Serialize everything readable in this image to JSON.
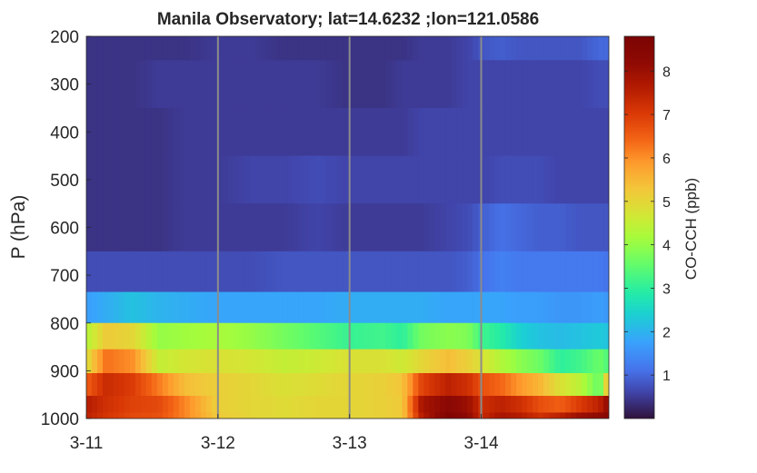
{
  "chart_data": {
    "type": "heatmap",
    "title": "Manila Observatory; lat=14.6232 ;lon=121.0586",
    "ylabel": "P (hPa)",
    "colorbar_label": "CO-CCH (ppb)",
    "colormap": "turbo",
    "y_ticks": [
      "200",
      "300",
      "400",
      "500",
      "600",
      "700",
      "800",
      "900",
      "1000"
    ],
    "y_range": [
      200,
      1000
    ],
    "y_reversed": true,
    "x_ticks": [
      "3-11",
      "3-12",
      "3-13",
      "3-14"
    ],
    "x_range": [
      "3-11 00:00",
      "3-14 23:00"
    ],
    "time_range_days": [
      0,
      3.97
    ],
    "colorbar_ticks": [
      "1",
      "2",
      "3",
      "4",
      "5",
      "6",
      "7",
      "8"
    ],
    "colorbar_range": [
      0,
      8.8
    ],
    "vertical_grid_lines_at": [
      "3-12",
      "3-13",
      "3-14"
    ],
    "grid": "vertical lines at day ticks",
    "pressure_levels_hPa": [
      200,
      300,
      400,
      500,
      600,
      700,
      770,
      830,
      880,
      930,
      975,
      1000
    ],
    "profile_samples_days": [
      0,
      0.15,
      0.35,
      0.55,
      0.75,
      1.0,
      1.25,
      1.5,
      1.75,
      2.0,
      2.25,
      2.4,
      2.55,
      2.75,
      2.9,
      3.0,
      3.15,
      3.3,
      3.45,
      3.6,
      3.75,
      3.9,
      3.97
    ],
    "values_ppb": [
      [
        0.4,
        0.4,
        0.4,
        0.4,
        0.4,
        0.5,
        0.5,
        0.4,
        0.4,
        0.4,
        0.4,
        0.4,
        0.5,
        0.5,
        0.6,
        0.8,
        0.9,
        0.8,
        0.8,
        0.8,
        0.8,
        1.0,
        1.0
      ],
      [
        0.4,
        0.4,
        0.4,
        0.5,
        0.5,
        0.5,
        0.5,
        0.5,
        0.5,
        0.4,
        0.4,
        0.5,
        0.5,
        0.5,
        0.6,
        0.6,
        0.6,
        0.6,
        0.6,
        0.6,
        0.6,
        0.7,
        0.7
      ],
      [
        0.4,
        0.4,
        0.4,
        0.4,
        0.5,
        0.5,
        0.5,
        0.5,
        0.5,
        0.5,
        0.5,
        0.5,
        0.6,
        0.6,
        0.6,
        0.6,
        0.6,
        0.6,
        0.6,
        0.6,
        0.6,
        0.6,
        0.6
      ],
      [
        0.4,
        0.4,
        0.4,
        0.4,
        0.5,
        0.5,
        0.6,
        0.6,
        0.7,
        0.6,
        0.6,
        0.6,
        0.6,
        0.6,
        0.6,
        0.6,
        0.7,
        0.7,
        0.7,
        0.6,
        0.6,
        0.6,
        0.6
      ],
      [
        0.4,
        0.4,
        0.4,
        0.4,
        0.5,
        0.5,
        0.5,
        0.5,
        0.6,
        0.5,
        0.5,
        0.5,
        0.5,
        0.6,
        0.7,
        0.9,
        1.1,
        1.0,
        0.9,
        0.9,
        0.8,
        0.8,
        0.8
      ],
      [
        0.7,
        0.7,
        0.7,
        0.7,
        0.7,
        0.7,
        0.7,
        0.8,
        0.8,
        0.8,
        0.8,
        0.8,
        0.8,
        0.8,
        0.9,
        1.1,
        1.3,
        1.2,
        1.2,
        1.2,
        1.2,
        1.2,
        1.1
      ],
      [
        1.7,
        1.9,
        2.2,
        2.0,
        1.9,
        1.8,
        1.8,
        1.8,
        1.8,
        1.9,
        1.9,
        1.9,
        1.9,
        1.8,
        1.8,
        1.8,
        1.8,
        1.7,
        1.7,
        1.6,
        1.6,
        1.7,
        1.6
      ],
      [
        4.3,
        5.2,
        5.0,
        4.0,
        4.1,
        4.2,
        4.0,
        3.7,
        3.4,
        3.1,
        3.2,
        3.0,
        3.7,
        3.9,
        3.8,
        3.2,
        2.9,
        2.4,
        2.2,
        2.1,
        2.2,
        2.3,
        2.2
      ],
      [
        4.8,
        6.3,
        6.0,
        4.5,
        4.7,
        4.8,
        4.7,
        4.5,
        4.6,
        4.8,
        4.8,
        4.6,
        5.0,
        5.4,
        5.1,
        4.8,
        4.3,
        3.9,
        3.6,
        3.0,
        3.2,
        3.6,
        3.3
      ],
      [
        6.5,
        7.3,
        7.0,
        6.2,
        5.4,
        5.1,
        5.0,
        4.8,
        4.9,
        5.0,
        5.1,
        5.3,
        6.9,
        7.5,
        7.2,
        6.7,
        6.4,
        5.9,
        5.5,
        4.8,
        4.4,
        3.5,
        5.7
      ],
      [
        7.6,
        7.2,
        6.9,
        6.8,
        6.1,
        5.1,
        5.0,
        4.9,
        5.0,
        5.0,
        5.1,
        5.2,
        7.8,
        8.3,
        8.0,
        7.2,
        7.5,
        7.2,
        6.7,
        6.5,
        7.0,
        7.5,
        8.2
      ],
      [
        7.5,
        7.1,
        6.8,
        6.7,
        6.1,
        5.2,
        5.0,
        4.9,
        5.0,
        5.0,
        5.1,
        5.2,
        7.6,
        8.6,
        8.2,
        7.3,
        7.8,
        7.6,
        7.2,
        7.5,
        8.0,
        8.2,
        8.4
      ]
    ]
  }
}
